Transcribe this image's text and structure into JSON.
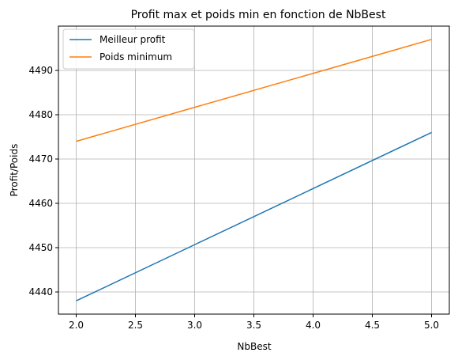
{
  "chart_data": {
    "type": "line",
    "title": "Profit max et poids min en fonction de NbBest",
    "xlabel": "NbBest",
    "ylabel": "Profit/Poids",
    "x": [
      2,
      3,
      4,
      5
    ],
    "series": [
      {
        "name": "Meilleur profit",
        "color": "#1f77b4",
        "values": [
          4438,
          4450.67,
          4463.33,
          4476
        ]
      },
      {
        "name": "Poids minimum",
        "color": "#ff7f0e",
        "values": [
          4474,
          4481.67,
          4489.33,
          4497
        ]
      }
    ],
    "xlim": [
      1.85,
      5.15
    ],
    "ylim": [
      4435,
      4500
    ],
    "xticks": [
      "2.0",
      "2.5",
      "3.0",
      "3.5",
      "4.0",
      "4.5",
      "5.0"
    ],
    "yticks": [
      "4440",
      "4450",
      "4460",
      "4470",
      "4480",
      "4490"
    ],
    "grid": true,
    "legend_position": "top-left"
  }
}
